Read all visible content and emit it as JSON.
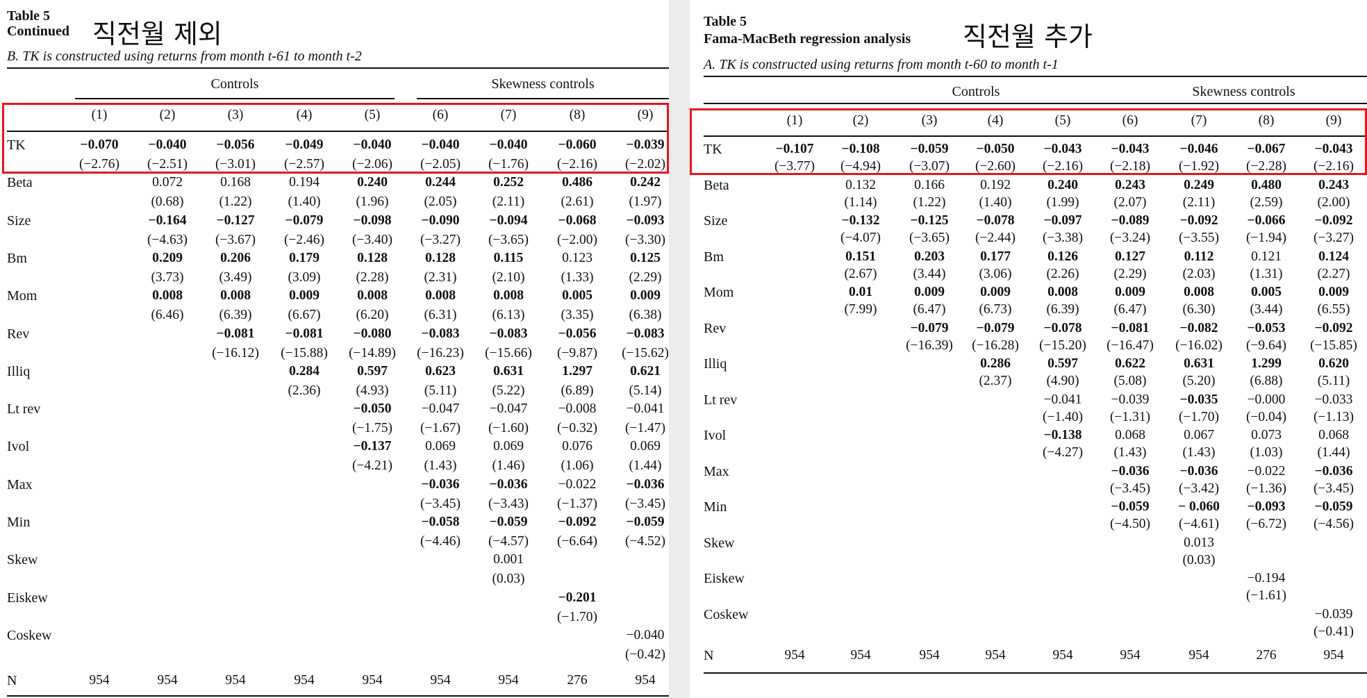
{
  "colors": {
    "highlight": "#e8141c",
    "separator": "#ececec"
  },
  "left": {
    "table_label": "Table 5",
    "table_subtitle": "Continued",
    "annotation": "직전월 제외",
    "panel_caption": "B. TK is constructed using returns from month t-61 to month t-2",
    "group_controls": "Controls",
    "group_skewness": "Skewness controls",
    "columns": [
      "(1)",
      "(2)",
      "(3)",
      "(4)",
      "(5)",
      "(6)",
      "(7)",
      "(8)",
      "(9)"
    ],
    "rows": [
      {
        "label": "TK",
        "coef": [
          [
            "−0.070",
            1
          ],
          [
            "−0.040",
            1
          ],
          [
            "−0.056",
            1
          ],
          [
            "−0.049",
            1
          ],
          [
            "−0.040",
            1
          ],
          [
            "−0.040",
            1
          ],
          [
            "−0.040",
            1
          ],
          [
            "−0.060",
            1
          ],
          [
            "−0.039",
            1
          ]
        ],
        "t": [
          "(−2.76)",
          "(−2.51)",
          "(−3.01)",
          "(−2.57)",
          "(−2.06)",
          "(−2.05)",
          "(−1.76)",
          "(−2.16)",
          "(−2.02)"
        ]
      },
      {
        "label": "Beta",
        "coef": [
          null,
          [
            "0.072",
            0
          ],
          [
            "0.168",
            0
          ],
          [
            "0.194",
            0
          ],
          [
            "0.240",
            1
          ],
          [
            "0.244",
            1
          ],
          [
            "0.252",
            1
          ],
          [
            "0.486",
            1
          ],
          [
            "0.242",
            1
          ]
        ],
        "t": [
          null,
          "(0.68)",
          "(1.22)",
          "(1.40)",
          "(1.96)",
          "(2.05)",
          "(2.11)",
          "(2.61)",
          "(1.97)"
        ]
      },
      {
        "label": "Size",
        "coef": [
          null,
          [
            "−0.164",
            1
          ],
          [
            "−0.127",
            1
          ],
          [
            "−0.079",
            1
          ],
          [
            "−0.098",
            1
          ],
          [
            "−0.090",
            1
          ],
          [
            "−0.094",
            1
          ],
          [
            "−0.068",
            1
          ],
          [
            "−0.093",
            1
          ]
        ],
        "t": [
          null,
          "(−4.63)",
          "(−3.67)",
          "(−2.46)",
          "(−3.40)",
          "(−3.27)",
          "(−3.65)",
          "(−2.00)",
          "(−3.30)"
        ]
      },
      {
        "label": "Bm",
        "coef": [
          null,
          [
            "0.209",
            1
          ],
          [
            "0.206",
            1
          ],
          [
            "0.179",
            1
          ],
          [
            "0.128",
            1
          ],
          [
            "0.128",
            1
          ],
          [
            "0.115",
            1
          ],
          [
            "0.123",
            0
          ],
          [
            "0.125",
            1
          ]
        ],
        "t": [
          null,
          "(3.73)",
          "(3.49)",
          "(3.09)",
          "(2.28)",
          "(2.31)",
          "(2.10)",
          "(1.33)",
          "(2.29)"
        ]
      },
      {
        "label": "Mom",
        "coef": [
          null,
          [
            "0.008",
            1
          ],
          [
            "0.008",
            1
          ],
          [
            "0.009",
            1
          ],
          [
            "0.008",
            1
          ],
          [
            "0.008",
            1
          ],
          [
            "0.008",
            1
          ],
          [
            "0.005",
            1
          ],
          [
            "0.009",
            1
          ]
        ],
        "t": [
          null,
          "(6.46)",
          "(6.39)",
          "(6.67)",
          "(6.20)",
          "(6.31)",
          "(6.13)",
          "(3.35)",
          "(6.38)"
        ]
      },
      {
        "label": "Rev",
        "coef": [
          null,
          null,
          [
            "−0.081",
            1
          ],
          [
            "−0.081",
            1
          ],
          [
            "−0.080",
            1
          ],
          [
            "−0.083",
            1
          ],
          [
            "−0.083",
            1
          ],
          [
            "−0.056",
            1
          ],
          [
            "−0.083",
            1
          ]
        ],
        "t": [
          null,
          null,
          "(−16.12)",
          "(−15.88)",
          "(−14.89)",
          "(−16.23)",
          "(−15.66)",
          "(−9.87)",
          "(−15.62)"
        ]
      },
      {
        "label": "Illiq",
        "coef": [
          null,
          null,
          null,
          [
            "0.284",
            1
          ],
          [
            "0.597",
            1
          ],
          [
            "0.623",
            1
          ],
          [
            "0.631",
            1
          ],
          [
            "1.297",
            1
          ],
          [
            "0.621",
            1
          ]
        ],
        "t": [
          null,
          null,
          null,
          "(2.36)",
          "(4.93)",
          "(5.11)",
          "(5.22)",
          "(6.89)",
          "(5.14)"
        ]
      },
      {
        "label": "Lt rev",
        "coef": [
          null,
          null,
          null,
          null,
          [
            "−0.050",
            1
          ],
          [
            "−0.047",
            0
          ],
          [
            "−0.047",
            0
          ],
          [
            "−0.008",
            0
          ],
          [
            "−0.041",
            0
          ]
        ],
        "t": [
          null,
          null,
          null,
          null,
          "(−1.75)",
          "(−1.67)",
          "(−1.60)",
          "(−0.32)",
          "(−1.47)"
        ]
      },
      {
        "label": "Ivol",
        "coef": [
          null,
          null,
          null,
          null,
          [
            "−0.137",
            1
          ],
          [
            "0.069",
            0
          ],
          [
            "0.069",
            0
          ],
          [
            "0.076",
            0
          ],
          [
            "0.069",
            0
          ]
        ],
        "t": [
          null,
          null,
          null,
          null,
          "(−4.21)",
          "(1.43)",
          "(1.46)",
          "(1.06)",
          "(1.44)"
        ]
      },
      {
        "label": "Max",
        "coef": [
          null,
          null,
          null,
          null,
          null,
          [
            "−0.036",
            1
          ],
          [
            "−0.036",
            1
          ],
          [
            "−0.022",
            0
          ],
          [
            "−0.036",
            1
          ]
        ],
        "t": [
          null,
          null,
          null,
          null,
          null,
          "(−3.45)",
          "(−3.43)",
          "(−1.37)",
          "(−3.45)"
        ]
      },
      {
        "label": "Min",
        "coef": [
          null,
          null,
          null,
          null,
          null,
          [
            "−0.058",
            1
          ],
          [
            "−0.059",
            1
          ],
          [
            "−0.092",
            1
          ],
          [
            "−0.059",
            1
          ]
        ],
        "t": [
          null,
          null,
          null,
          null,
          null,
          "(−4.46)",
          "(−4.57)",
          "(−6.64)",
          "(−4.52)"
        ]
      },
      {
        "label": "Skew",
        "coef": [
          null,
          null,
          null,
          null,
          null,
          null,
          [
            "0.001",
            0
          ],
          null,
          null
        ],
        "t": [
          null,
          null,
          null,
          null,
          null,
          null,
          "(0.03)",
          null,
          null
        ]
      },
      {
        "label": "Eiskew",
        "coef": [
          null,
          null,
          null,
          null,
          null,
          null,
          null,
          [
            "−0.201",
            1
          ],
          null
        ],
        "t": [
          null,
          null,
          null,
          null,
          null,
          null,
          null,
          "(−1.70)",
          null
        ]
      },
      {
        "label": "Coskew",
        "coef": [
          null,
          null,
          null,
          null,
          null,
          null,
          null,
          null,
          [
            "−0.040",
            0
          ]
        ],
        "t": [
          null,
          null,
          null,
          null,
          null,
          null,
          null,
          null,
          "(−0.42)"
        ]
      }
    ],
    "n_label": "N",
    "n": [
      "954",
      "954",
      "954",
      "954",
      "954",
      "954",
      "954",
      "276",
      "954"
    ]
  },
  "right": {
    "table_label": "Table 5",
    "table_subtitle": "Fama-MacBeth regression analysis",
    "annotation": "직전월 추가",
    "panel_caption": "A. TK is constructed using returns from month t-60 to month t-1",
    "group_controls": "Controls",
    "group_skewness": "Skewness controls",
    "columns": [
      "(1)",
      "(2)",
      "(3)",
      "(4)",
      "(5)",
      "(6)",
      "(7)",
      "(8)",
      "(9)"
    ],
    "rows": [
      {
        "label": "TK",
        "coef": [
          [
            "−0.107",
            1
          ],
          [
            "−0.108",
            1
          ],
          [
            "−0.059",
            1
          ],
          [
            "−0.050",
            1
          ],
          [
            "−0.043",
            1
          ],
          [
            "−0.043",
            1
          ],
          [
            "−0.046",
            1
          ],
          [
            "−0.067",
            1
          ],
          [
            "−0.043",
            1
          ]
        ],
        "t": [
          "(−3.77)",
          "(−4.94)",
          "(−3.07)",
          "(−2.60)",
          "(−2.16)",
          "(−2.18)",
          "(−1.92)",
          "(−2.28)",
          "(−2.16)"
        ]
      },
      {
        "label": "Beta",
        "coef": [
          null,
          [
            "0.132",
            0
          ],
          [
            "0.166",
            0
          ],
          [
            "0.192",
            0
          ],
          [
            "0.240",
            1
          ],
          [
            "0.243",
            1
          ],
          [
            "0.249",
            1
          ],
          [
            "0.480",
            1
          ],
          [
            "0.243",
            1
          ]
        ],
        "t": [
          null,
          "(1.14)",
          "(1.22)",
          "(1.40)",
          "(1.99)",
          "(2.07)",
          "(2.11)",
          "(2.59)",
          "(2.00)"
        ]
      },
      {
        "label": "Size",
        "coef": [
          null,
          [
            "−0.132",
            1
          ],
          [
            "−0.125",
            1
          ],
          [
            "−0.078",
            1
          ],
          [
            "−0.097",
            1
          ],
          [
            "−0.089",
            1
          ],
          [
            "−0.092",
            1
          ],
          [
            "−0.066",
            1
          ],
          [
            "−0.092",
            1
          ]
        ],
        "t": [
          null,
          "(−4.07)",
          "(−3.65)",
          "(−2.44)",
          "(−3.38)",
          "(−3.24)",
          "(−3.55)",
          "(−1.94)",
          "(−3.27)"
        ]
      },
      {
        "label": "Bm",
        "coef": [
          null,
          [
            "0.151",
            1
          ],
          [
            "0.203",
            1
          ],
          [
            "0.177",
            1
          ],
          [
            "0.126",
            1
          ],
          [
            "0.127",
            1
          ],
          [
            "0.112",
            1
          ],
          [
            "0.121",
            0
          ],
          [
            "0.124",
            1
          ]
        ],
        "t": [
          null,
          "(2.67)",
          "(3.44)",
          "(3.06)",
          "(2.26)",
          "(2.29)",
          "(2.03)",
          "(1.31)",
          "(2.27)"
        ]
      },
      {
        "label": "Mom",
        "coef": [
          null,
          [
            "0.01",
            1
          ],
          [
            "0.009",
            1
          ],
          [
            "0.009",
            1
          ],
          [
            "0.008",
            1
          ],
          [
            "0.009",
            1
          ],
          [
            "0.008",
            1
          ],
          [
            "0.005",
            1
          ],
          [
            "0.009",
            1
          ]
        ],
        "t": [
          null,
          "(7.99)",
          "(6.47)",
          "(6.73)",
          "(6.39)",
          "(6.47)",
          "(6.30)",
          "(3.44)",
          "(6.55)"
        ]
      },
      {
        "label": "Rev",
        "coef": [
          null,
          null,
          [
            "−0.079",
            1
          ],
          [
            "−0.079",
            1
          ],
          [
            "−0.078",
            1
          ],
          [
            "−0.081",
            1
          ],
          [
            "−0.082",
            1
          ],
          [
            "−0.053",
            1
          ],
          [
            "−0.092",
            1
          ]
        ],
        "t": [
          null,
          null,
          "(−16.39)",
          "(−16.28)",
          "(−15.20)",
          "(−16.47)",
          "(−16.02)",
          "(−9.64)",
          "(−15.85)"
        ]
      },
      {
        "label": "Illiq",
        "coef": [
          null,
          null,
          null,
          [
            "0.286",
            1
          ],
          [
            "0.597",
            1
          ],
          [
            "0.622",
            1
          ],
          [
            "0.631",
            1
          ],
          [
            "1.299",
            1
          ],
          [
            "0.620",
            1
          ]
        ],
        "t": [
          null,
          null,
          null,
          "(2.37)",
          "(4.90)",
          "(5.08)",
          "(5.20)",
          "(6.88)",
          "(5.11)"
        ]
      },
      {
        "label": "Lt rev",
        "coef": [
          null,
          null,
          null,
          null,
          [
            "−0.041",
            0
          ],
          [
            "−0.039",
            0
          ],
          [
            "−0.035",
            1
          ],
          [
            "−0.000",
            0
          ],
          [
            "−0.033",
            0
          ]
        ],
        "t": [
          null,
          null,
          null,
          null,
          "(−1.40)",
          "(−1.31)",
          "(−1.70)",
          "(−0.04)",
          "(−1.13)"
        ]
      },
      {
        "label": "Ivol",
        "coef": [
          null,
          null,
          null,
          null,
          [
            "−0.138",
            1
          ],
          [
            "0.068",
            0
          ],
          [
            "0.067",
            0
          ],
          [
            "0.073",
            0
          ],
          [
            "0.068",
            0
          ]
        ],
        "t": [
          null,
          null,
          null,
          null,
          "(−4.27)",
          "(1.43)",
          "(1.43)",
          "(1.03)",
          "(1.44)"
        ]
      },
      {
        "label": "Max",
        "coef": [
          null,
          null,
          null,
          null,
          null,
          [
            "−0.036",
            1
          ],
          [
            "−0.036",
            1
          ],
          [
            "−0.022",
            0
          ],
          [
            "−0.036",
            1
          ]
        ],
        "t": [
          null,
          null,
          null,
          null,
          null,
          "(−3.45)",
          "(−3.42)",
          "(−1.36)",
          "(−3.45)"
        ]
      },
      {
        "label": "Min",
        "coef": [
          null,
          null,
          null,
          null,
          null,
          [
            "−0.059",
            1
          ],
          [
            "− 0.060",
            1
          ],
          [
            "−0.093",
            1
          ],
          [
            "−0.059",
            1
          ]
        ],
        "t": [
          null,
          null,
          null,
          null,
          null,
          "(−4.50)",
          "(−4.61)",
          "(−6.72)",
          "(−4.56)"
        ]
      },
      {
        "label": "Skew",
        "coef": [
          null,
          null,
          null,
          null,
          null,
          null,
          [
            "0.013",
            0
          ],
          null,
          null
        ],
        "t": [
          null,
          null,
          null,
          null,
          null,
          null,
          "(0.03)",
          null,
          null
        ]
      },
      {
        "label": "Eiskew",
        "coef": [
          null,
          null,
          null,
          null,
          null,
          null,
          null,
          [
            "−0.194",
            0
          ],
          null
        ],
        "t": [
          null,
          null,
          null,
          null,
          null,
          null,
          null,
          "(−1.61)",
          null
        ]
      },
      {
        "label": "Coskew",
        "coef": [
          null,
          null,
          null,
          null,
          null,
          null,
          null,
          null,
          [
            "−0.039",
            0
          ]
        ],
        "t": [
          null,
          null,
          null,
          null,
          null,
          null,
          null,
          null,
          "(−0.41)"
        ]
      }
    ],
    "n_label": "N",
    "n": [
      "954",
      "954",
      "954",
      "954",
      "954",
      "954",
      "954",
      "276",
      "954"
    ]
  }
}
